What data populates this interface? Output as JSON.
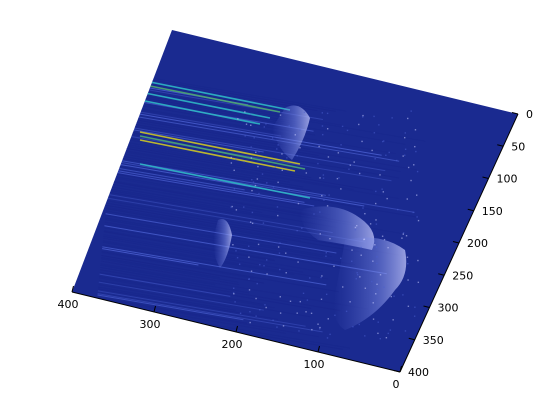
{
  "chart_data": {
    "type": "heatmap",
    "title": "",
    "xlabel": "",
    "ylabel": "",
    "view": "3-D surface, rotated",
    "colormap": "jet",
    "x_axis": {
      "ticks": [
        0,
        50,
        100,
        150,
        200,
        250,
        300,
        350,
        400
      ],
      "lim": [
        0,
        400
      ]
    },
    "y_axis": {
      "ticks": [
        0,
        100,
        200,
        300,
        400
      ],
      "lim": [
        0,
        400
      ]
    },
    "grid": false,
    "legend": "none",
    "colors": {
      "background": "#1a2a90",
      "low": "#18268c",
      "mid": "#4a5fd0",
      "high": "#c8ccff",
      "streak_yellow": "#d8d020",
      "streak_cyan": "#30c0c8",
      "streak_green": "#50b070"
    }
  }
}
